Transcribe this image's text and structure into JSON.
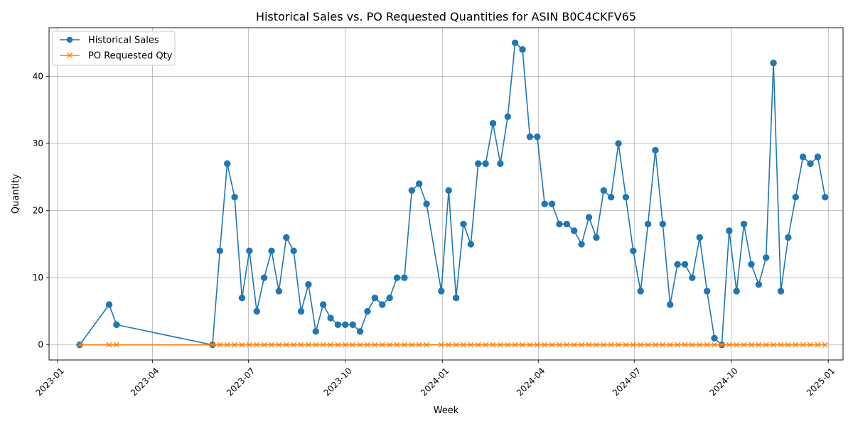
{
  "chart_data": {
    "type": "line",
    "title": "Historical Sales vs. PO Requested Quantities for ASIN B0C4CKFV65",
    "xlabel": "Week",
    "ylabel": "Quantity",
    "grid": true,
    "legend_position": "top-left",
    "xlim": [
      "2022-12-24",
      "2025-01-15"
    ],
    "ylim": [
      -2.25,
      47.25
    ],
    "x_ticks": [
      "2023-01",
      "2023-04",
      "2023-07",
      "2023-10",
      "2024-01",
      "2024-04",
      "2024-07",
      "2024-10",
      "2025-01"
    ],
    "y_ticks": [
      0,
      10,
      20,
      30,
      40
    ],
    "series": [
      {
        "name": "Historical Sales",
        "color": "#1f77b4",
        "marker": "circle",
        "x": [
          "2023-01-22",
          "2023-02-19",
          "2023-02-26",
          "2023-05-28",
          "2023-06-04",
          "2023-06-11",
          "2023-06-18",
          "2023-06-25",
          "2023-07-02",
          "2023-07-09",
          "2023-07-16",
          "2023-07-23",
          "2023-07-30",
          "2023-08-06",
          "2023-08-13",
          "2023-08-20",
          "2023-08-27",
          "2023-09-03",
          "2023-09-10",
          "2023-09-17",
          "2023-09-24",
          "2023-10-01",
          "2023-10-08",
          "2023-10-15",
          "2023-10-22",
          "2023-10-29",
          "2023-11-05",
          "2023-11-12",
          "2023-11-19",
          "2023-11-26",
          "2023-12-03",
          "2023-12-10",
          "2023-12-17",
          "2023-12-31",
          "2024-01-07",
          "2024-01-14",
          "2024-01-21",
          "2024-01-28",
          "2024-02-04",
          "2024-02-11",
          "2024-02-18",
          "2024-02-25",
          "2024-03-03",
          "2024-03-10",
          "2024-03-17",
          "2024-03-24",
          "2024-03-31",
          "2024-04-07",
          "2024-04-14",
          "2024-04-21",
          "2024-04-28",
          "2024-05-05",
          "2024-05-12",
          "2024-05-19",
          "2024-05-26",
          "2024-06-02",
          "2024-06-09",
          "2024-06-16",
          "2024-06-23",
          "2024-06-30",
          "2024-07-07",
          "2024-07-14",
          "2024-07-21",
          "2024-07-28",
          "2024-08-04",
          "2024-08-11",
          "2024-08-18",
          "2024-08-25",
          "2024-09-01",
          "2024-09-08",
          "2024-09-15",
          "2024-09-22",
          "2024-09-29",
          "2024-10-06",
          "2024-10-13",
          "2024-10-20",
          "2024-10-27",
          "2024-11-03",
          "2024-11-10",
          "2024-11-17",
          "2024-11-24",
          "2024-12-01",
          "2024-12-08",
          "2024-12-15",
          "2024-12-22",
          "2024-12-29"
        ],
        "values": [
          0,
          6,
          3,
          0,
          14,
          27,
          22,
          7,
          14,
          5,
          10,
          14,
          8,
          16,
          14,
          5,
          9,
          2,
          6,
          4,
          3,
          3,
          3,
          2,
          5,
          7,
          6,
          7,
          10,
          10,
          23,
          24,
          21,
          8,
          23,
          7,
          18,
          15,
          27,
          27,
          33,
          27,
          34,
          45,
          44,
          31,
          31,
          21,
          21,
          18,
          18,
          17,
          15,
          19,
          16,
          23,
          22,
          30,
          22,
          14,
          8,
          18,
          29,
          18,
          6,
          12,
          12,
          10,
          16,
          8,
          1,
          0,
          17,
          8,
          18,
          12,
          9,
          13,
          42,
          8,
          16,
          22,
          28,
          27,
          28,
          22
        ]
      },
      {
        "name": "PO Requested Qty",
        "color": "#ff7f0e",
        "marker": "x",
        "x": [
          "2023-01-22",
          "2023-02-19",
          "2023-02-26",
          "2023-05-28",
          "2023-06-04",
          "2023-06-11",
          "2023-06-18",
          "2023-06-25",
          "2023-07-02",
          "2023-07-09",
          "2023-07-16",
          "2023-07-23",
          "2023-07-30",
          "2023-08-06",
          "2023-08-13",
          "2023-08-20",
          "2023-08-27",
          "2023-09-03",
          "2023-09-10",
          "2023-09-17",
          "2023-09-24",
          "2023-10-01",
          "2023-10-08",
          "2023-10-15",
          "2023-10-22",
          "2023-10-29",
          "2023-11-05",
          "2023-11-12",
          "2023-11-19",
          "2023-11-26",
          "2023-12-03",
          "2023-12-10",
          "2023-12-17",
          "2023-12-31",
          "2024-01-07",
          "2024-01-14",
          "2024-01-21",
          "2024-01-28",
          "2024-02-04",
          "2024-02-11",
          "2024-02-18",
          "2024-02-25",
          "2024-03-03",
          "2024-03-10",
          "2024-03-17",
          "2024-03-24",
          "2024-03-31",
          "2024-04-07",
          "2024-04-14",
          "2024-04-21",
          "2024-04-28",
          "2024-05-05",
          "2024-05-12",
          "2024-05-19",
          "2024-05-26",
          "2024-06-02",
          "2024-06-09",
          "2024-06-16",
          "2024-06-23",
          "2024-06-30",
          "2024-07-07",
          "2024-07-14",
          "2024-07-21",
          "2024-07-28",
          "2024-08-04",
          "2024-08-11",
          "2024-08-18",
          "2024-08-25",
          "2024-09-01",
          "2024-09-08",
          "2024-09-15",
          "2024-09-22",
          "2024-09-29",
          "2024-10-06",
          "2024-10-13",
          "2024-10-20",
          "2024-10-27",
          "2024-11-03",
          "2024-11-10",
          "2024-11-17",
          "2024-11-24",
          "2024-12-01",
          "2024-12-08",
          "2024-12-15",
          "2024-12-22",
          "2024-12-29"
        ],
        "values": [
          0,
          0,
          0,
          0,
          0,
          0,
          0,
          0,
          0,
          0,
          0,
          0,
          0,
          0,
          0,
          0,
          0,
          0,
          0,
          0,
          0,
          0,
          0,
          0,
          0,
          0,
          0,
          0,
          0,
          0,
          0,
          0,
          0,
          0,
          0,
          0,
          0,
          0,
          0,
          0,
          0,
          0,
          0,
          0,
          0,
          0,
          0,
          0,
          0,
          0,
          0,
          0,
          0,
          0,
          0,
          0,
          0,
          0,
          0,
          0,
          0,
          0,
          0,
          0,
          0,
          0,
          0,
          0,
          0,
          0,
          0,
          0,
          0,
          0,
          0,
          0,
          0,
          0,
          0,
          0,
          0,
          0,
          0,
          0,
          0,
          0
        ]
      }
    ]
  }
}
